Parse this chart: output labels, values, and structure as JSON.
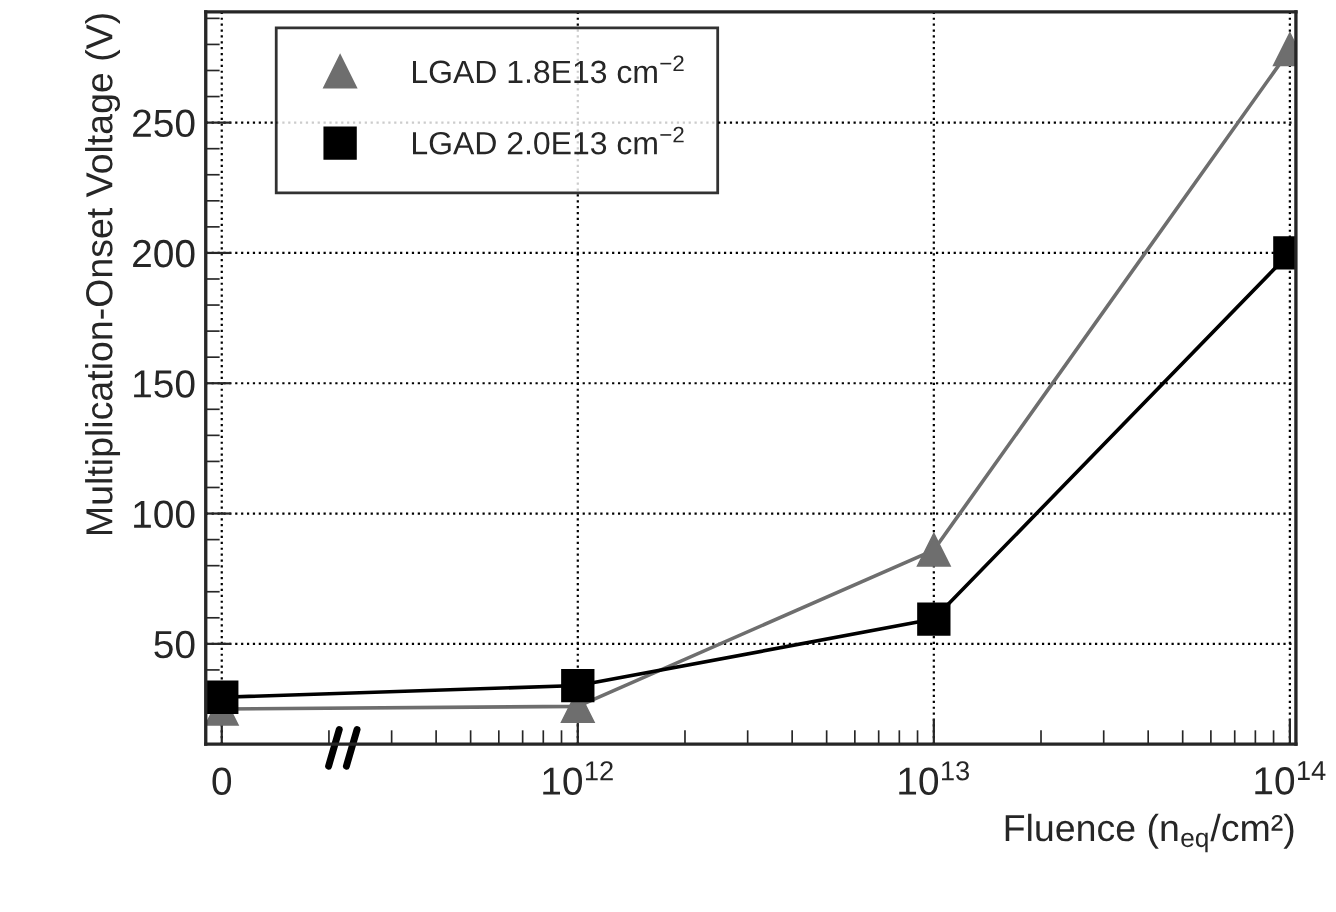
{
  "chart_data": {
    "type": "line",
    "xlabel": "Fluence (n$_{eq}$/cm²)",
    "ylabel": "Multiplication-Onset Voltage (V)",
    "categories": [
      "0",
      "10$^{12}$",
      "10$^{13}$",
      "10$^{14}$"
    ],
    "series": [
      {
        "name": "LGAD 1.8E13 cm$^{−2}$",
        "color": "#6e6e6e",
        "marker": "triangle",
        "values": [
          25,
          26,
          86,
          278
        ]
      },
      {
        "name": "LGAD 2.0E13 cm$^{−2}$",
        "color": "#000000",
        "marker": "square",
        "values": [
          29.5,
          34,
          59.5,
          200
        ]
      }
    ],
    "ylim": [
      11.5,
      292.5
    ],
    "yticks": [
      50,
      100,
      150,
      200,
      250
    ],
    "grid": true,
    "legend": "top left",
    "line_style": "solid"
  }
}
